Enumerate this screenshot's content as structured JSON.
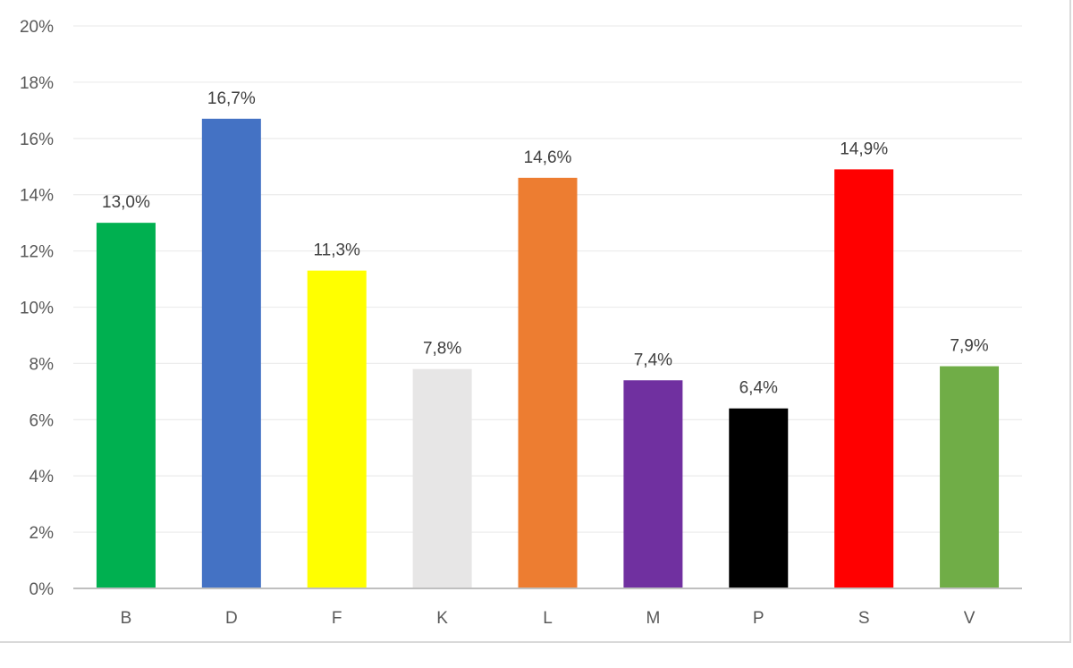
{
  "chart_data": {
    "type": "bar",
    "categories": [
      "B",
      "D",
      "F",
      "K",
      "L",
      "M",
      "P",
      "S",
      "V"
    ],
    "values": [
      13.0,
      16.7,
      11.3,
      7.8,
      14.6,
      7.4,
      6.4,
      14.9,
      7.9
    ],
    "data_labels": [
      "13,0%",
      "16,7%",
      "11,3%",
      "7,8%",
      "14,6%",
      "7,4%",
      "6,4%",
      "14,9%",
      "7,9%"
    ],
    "colors": [
      "#00b050",
      "#4472c4",
      "#ffff00",
      "#e7e6e6",
      "#ed7d31",
      "#7030a0",
      "#000000",
      "#ff0000",
      "#70ad47"
    ],
    "title": "",
    "xlabel": "",
    "ylabel": "",
    "ylim": [
      0,
      20
    ],
    "y_ticks": [
      0,
      2,
      4,
      6,
      8,
      10,
      12,
      14,
      16,
      18,
      20
    ],
    "y_tick_labels": [
      "0%",
      "2%",
      "4%",
      "6%",
      "8%",
      "10%",
      "12%",
      "14%",
      "16%",
      "18%",
      "20%"
    ],
    "grid": true,
    "legend": "none"
  }
}
